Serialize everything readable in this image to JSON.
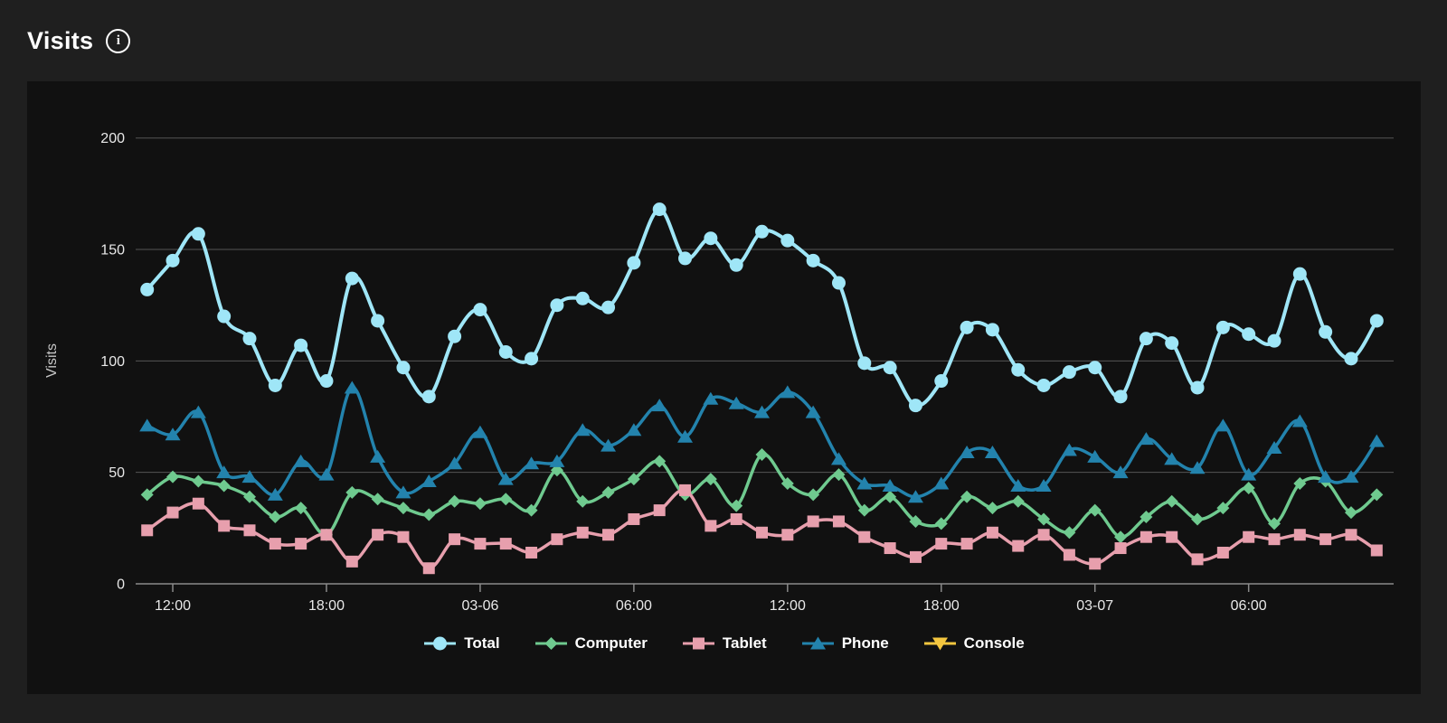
{
  "header": {
    "title": "Visits",
    "info_icon": "info-icon"
  },
  "chart_data": {
    "type": "line",
    "title": "Visits",
    "xlabel": "",
    "ylabel": "Visits",
    "ylim": [
      0,
      200
    ],
    "yticks": [
      0,
      50,
      100,
      150,
      200
    ],
    "grid": true,
    "legend_position": "bottom",
    "x_point_count": 49,
    "x_interval": "1 hour",
    "xticks": [
      {
        "label": "12:00",
        "index": 1
      },
      {
        "label": "18:00",
        "index": 7
      },
      {
        "label": "03-06",
        "index": 13
      },
      {
        "label": "06:00",
        "index": 19
      },
      {
        "label": "12:00",
        "index": 25
      },
      {
        "label": "18:00",
        "index": 31
      },
      {
        "label": "03-07",
        "index": 37
      },
      {
        "label": "06:00",
        "index": 43
      }
    ],
    "series": [
      {
        "name": "Total",
        "color": "#9fe6f7",
        "marker": "circle",
        "values": [
          132,
          145,
          157,
          120,
          110,
          89,
          107,
          91,
          137,
          118,
          97,
          84,
          111,
          123,
          104,
          101,
          125,
          128,
          124,
          144,
          168,
          146,
          155,
          143,
          158,
          154,
          145,
          135,
          99,
          97,
          80,
          91,
          115,
          114,
          96,
          89,
          95,
          97,
          84,
          110,
          108,
          88,
          115,
          112,
          109,
          139,
          113,
          101,
          118
        ]
      },
      {
        "name": "Computer",
        "color": "#6fca8f",
        "marker": "diamond",
        "values": [
          40,
          48,
          46,
          44,
          39,
          30,
          34,
          22,
          41,
          38,
          34,
          31,
          37,
          36,
          38,
          33,
          51,
          37,
          41,
          47,
          55,
          40,
          47,
          35,
          58,
          45,
          40,
          49,
          33,
          39,
          28,
          27,
          39,
          34,
          37,
          29,
          23,
          33,
          21,
          30,
          37,
          29,
          34,
          43,
          27,
          45,
          46,
          32,
          40
        ]
      },
      {
        "name": "Tablet",
        "color": "#e79fad",
        "marker": "square",
        "values": [
          24,
          32,
          36,
          26,
          24,
          18,
          18,
          22,
          10,
          22,
          21,
          7,
          20,
          18,
          18,
          14,
          20,
          23,
          22,
          29,
          33,
          42,
          26,
          29,
          23,
          22,
          28,
          28,
          21,
          16,
          12,
          18,
          18,
          23,
          17,
          22,
          13,
          9,
          16,
          21,
          21,
          11,
          14,
          21,
          20,
          22,
          20,
          22,
          15
        ]
      },
      {
        "name": "Phone",
        "color": "#2383ad",
        "marker": "triangle",
        "values": [
          71,
          67,
          77,
          50,
          48,
          40,
          55,
          49,
          88,
          57,
          41,
          46,
          54,
          68,
          47,
          54,
          55,
          69,
          62,
          69,
          80,
          66,
          83,
          81,
          77,
          86,
          77,
          56,
          45,
          44,
          39,
          45,
          59,
          59,
          44,
          44,
          60,
          57,
          50,
          65,
          56,
          52,
          71,
          49,
          61,
          73,
          48,
          48,
          64
        ]
      },
      {
        "name": "Console",
        "color": "#f4c63f",
        "marker": "triangle-down",
        "values": []
      }
    ]
  },
  "palette": {
    "page_background": "#1f1f1f",
    "panel_background": "#111111",
    "gridline": "#555555",
    "axis_line": "#8a8a8a",
    "tick_label": "#e8e8e8",
    "axis_name": "#c8c8c8",
    "text": "#ffffff"
  }
}
